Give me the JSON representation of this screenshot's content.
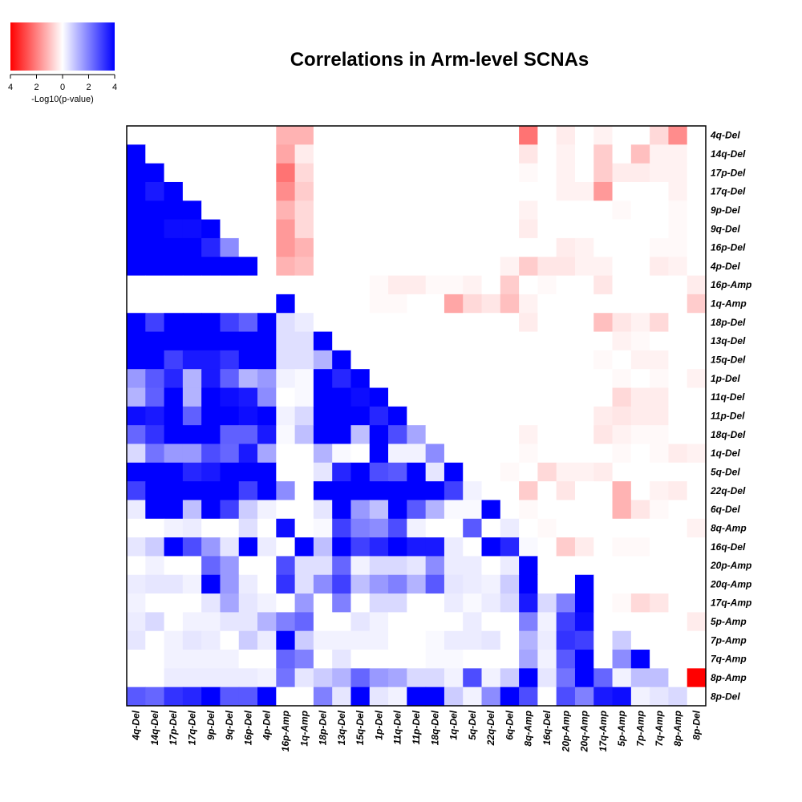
{
  "chart_data": {
    "type": "heatmap",
    "title": "Correlations in Arm-level SCNAs",
    "legend": {
      "label": "-Log10(p-value)",
      "tick_labels": [
        "4",
        "2",
        "0",
        "2",
        "4"
      ],
      "scale": [
        -4,
        4
      ],
      "colors": {
        "negative": "#ff0000",
        "zero": "#ffffff",
        "positive": "#0000ff"
      },
      "placement": "top-left"
    },
    "row_labels": [
      "4q-Del",
      "14q-Del",
      "17p-Del",
      "17q-Del",
      "9p-Del",
      "9q-Del",
      "16p-Del",
      "4p-Del",
      "16p-Amp",
      "1q-Amp",
      "18p-Del",
      "13q-Del",
      "15q-Del",
      "1p-Del",
      "11q-Del",
      "11p-Del",
      "18q-Del",
      "1q-Del",
      "5q-Del",
      "22q-Del",
      "6q-Del",
      "8q-Amp",
      "16q-Del",
      "20p-Amp",
      "20q-Amp",
      "17q-Amp",
      "5p-Amp",
      "7p-Amp",
      "7q-Amp",
      "8p-Amp",
      "8p-Del"
    ],
    "col_labels": [
      "4q-Del",
      "14q-Del",
      "17p-Del",
      "17q-Del",
      "9p-Del",
      "9q-Del",
      "16p-Del",
      "4p-Del",
      "16p-Amp",
      "1q-Amp",
      "18p-Del",
      "13q-Del",
      "15q-Del",
      "1p-Del",
      "11q-Del",
      "11p-Del",
      "18q-Del",
      "1q-Del",
      "5q-Del",
      "22q-Del",
      "6q-Del",
      "8q-Amp",
      "16q-Del",
      "20p-Amp",
      "20q-Amp",
      "17q-Amp",
      "5p-Amp",
      "7p-Amp",
      "7q-Amp",
      "8p-Amp",
      "8p-Del"
    ],
    "lower_triangle_meaning": "blue = positive association strength",
    "upper_triangle_meaning": "red = negative association strength",
    "values": [
      [
        0,
        0,
        0,
        0,
        0,
        0,
        0,
        0,
        -1.2,
        -1.2,
        0,
        0,
        0,
        0,
        0,
        0,
        0,
        0,
        0,
        0,
        0,
        -2.2,
        0,
        -0.3,
        0,
        -0.2,
        0,
        0,
        -0.6,
        -1.8,
        0
      ],
      [
        4,
        0,
        0,
        0,
        0,
        0,
        0,
        0,
        -1.4,
        -0.3,
        0,
        0,
        0,
        0,
        0,
        0,
        0,
        0,
        0,
        0,
        0,
        -0.4,
        0,
        -0.2,
        0,
        -0.8,
        0,
        -1,
        -0.2,
        -0.2,
        0
      ],
      [
        4,
        4,
        0,
        0,
        0,
        0,
        0,
        0,
        -2.2,
        -0.6,
        0,
        0,
        0,
        0,
        0,
        0,
        0,
        0,
        0,
        0,
        0,
        -0.1,
        0,
        -0.2,
        0,
        -0.8,
        -0.3,
        -0.3,
        -0.2,
        -0.2,
        0
      ],
      [
        4,
        3.6,
        4,
        0,
        0,
        0,
        0,
        0,
        -1.8,
        -0.8,
        0,
        0,
        0,
        0,
        0,
        0,
        0,
        0,
        0,
        0,
        0,
        0,
        0,
        -0.2,
        -0.2,
        -1.6,
        0,
        0,
        0,
        -0.2,
        0
      ],
      [
        4,
        4,
        4,
        4,
        0,
        0,
        0,
        0,
        -1.2,
        -0.6,
        0,
        0,
        0,
        0,
        0,
        0,
        0,
        0,
        0,
        0,
        0,
        -0.2,
        0,
        0,
        0,
        0,
        -0.1,
        0,
        0,
        -0.1,
        0
      ],
      [
        4,
        4,
        3.8,
        3.8,
        4,
        0,
        0,
        0,
        -1.6,
        -0.6,
        0,
        0,
        0,
        0,
        0,
        0,
        0,
        0,
        0,
        0,
        0,
        -0.3,
        0,
        0,
        0,
        0,
        0,
        0,
        0,
        -0.1,
        0
      ],
      [
        4,
        4,
        4,
        4,
        3.4,
        1.8,
        0,
        0,
        -1.6,
        -1.2,
        0,
        0,
        0,
        0,
        0,
        0,
        0,
        0,
        0,
        0,
        0,
        0,
        0,
        -0.3,
        -0.2,
        0,
        0,
        0,
        -0.1,
        -0.1,
        0
      ],
      [
        4,
        4,
        4,
        4,
        4,
        4,
        4,
        0,
        -1.2,
        -1,
        0,
        0,
        0,
        0,
        0,
        0,
        0,
        0,
        0,
        0,
        -0.2,
        -0.8,
        -0.4,
        -0.4,
        -0.2,
        -0.2,
        0,
        0,
        -0.3,
        -0.2,
        0
      ],
      [
        0,
        0,
        0,
        0,
        0,
        0,
        0,
        0,
        0,
        0,
        0,
        0,
        0,
        -0.1,
        -0.3,
        -0.3,
        -0.1,
        -0.1,
        -0.2,
        0,
        -0.8,
        0,
        -0.1,
        0,
        0,
        -0.4,
        0,
        0,
        0,
        0,
        -0.3
      ],
      [
        0,
        0,
        0,
        0,
        0,
        0,
        0,
        0,
        4,
        0,
        0,
        0,
        0,
        -0.1,
        -0.1,
        0,
        0,
        -1.4,
        -0.6,
        -0.4,
        -1,
        -0.2,
        0,
        0,
        0,
        0,
        0,
        0,
        0,
        0,
        -0.8
      ],
      [
        4,
        3,
        4,
        4,
        4,
        3,
        2.5,
        4,
        0.5,
        0.3,
        0,
        0,
        0,
        0,
        0,
        0,
        0,
        0,
        0,
        0,
        0,
        -0.3,
        0,
        0,
        0,
        -1,
        -0.4,
        -0.2,
        -0.6,
        0,
        0
      ],
      [
        4,
        4,
        4,
        4,
        4,
        4,
        4,
        4,
        0.5,
        0.5,
        4,
        0,
        0,
        0,
        0,
        0,
        0,
        0,
        0,
        0,
        0,
        0,
        0,
        0,
        0,
        0,
        -0.2,
        -0.1,
        0,
        0,
        0
      ],
      [
        4,
        4,
        3,
        3.6,
        3.6,
        3.2,
        4,
        4,
        0.5,
        0.5,
        1.2,
        4,
        0,
        0,
        0,
        0,
        0,
        0,
        0,
        0,
        0,
        0,
        0,
        0,
        0,
        -0.1,
        0,
        -0.2,
        -0.2,
        0,
        0
      ],
      [
        1.6,
        2.6,
        3.4,
        1.2,
        3.6,
        2.5,
        1.2,
        1.6,
        0.2,
        0.1,
        4,
        3.4,
        4,
        0,
        0,
        0,
        0,
        0,
        0,
        0,
        0,
        0,
        0,
        0,
        0,
        0,
        -0.1,
        0,
        -0.1,
        0,
        -0.2
      ],
      [
        1.2,
        2.5,
        4,
        1.2,
        4,
        3.8,
        3.6,
        1.8,
        0,
        0.1,
        4,
        4,
        3.8,
        4,
        0,
        0,
        0,
        0,
        0,
        0,
        0,
        0,
        0,
        0,
        0,
        0,
        -0.6,
        -0.3,
        -0.3,
        0,
        0
      ],
      [
        3.8,
        3.6,
        4,
        2.5,
        4,
        4,
        3.8,
        4,
        0.2,
        0.6,
        4,
        4,
        4,
        3.4,
        4,
        0,
        0,
        0,
        0,
        0,
        0,
        0,
        0,
        0,
        0,
        -0.3,
        -0.4,
        -0.3,
        -0.3,
        0,
        0
      ],
      [
        2.4,
        3.2,
        4,
        4,
        4,
        2.5,
        2.5,
        3.6,
        0.1,
        1,
        4,
        4,
        1,
        4,
        2.8,
        1.4,
        0,
        0,
        0,
        0,
        0,
        -0.2,
        0,
        0,
        0,
        -0.4,
        -0.2,
        -0.1,
        -0.1,
        0,
        0
      ],
      [
        0.6,
        2.2,
        1.6,
        1.6,
        2.8,
        2.4,
        3.6,
        1.4,
        0,
        0,
        1.2,
        0.1,
        0,
        4,
        0.2,
        0.2,
        1.8,
        0,
        0,
        0,
        0,
        -0.1,
        0,
        0,
        0,
        0,
        -0.1,
        0,
        -0.1,
        -0.3,
        -0.2
      ],
      [
        4,
        4,
        4,
        3.4,
        3.6,
        4,
        4,
        4,
        0,
        0,
        0.4,
        3.4,
        4,
        2.8,
        2.6,
        4,
        0.4,
        4,
        0,
        0,
        -0.1,
        0,
        -0.6,
        -0.2,
        -0.2,
        -0.3,
        0,
        0,
        0,
        0,
        0
      ],
      [
        3,
        4,
        4,
        4,
        4,
        4,
        3,
        4,
        1.8,
        0,
        4,
        4,
        4,
        4,
        4,
        4,
        4,
        3,
        0.2,
        0,
        0,
        -0.8,
        0,
        -0.4,
        0,
        0,
        -1.2,
        0,
        -0.2,
        -0.3,
        0
      ],
      [
        0.3,
        4,
        4,
        1,
        4,
        3,
        0.8,
        0.2,
        0,
        0,
        0.4,
        4,
        1.6,
        1,
        4,
        2.6,
        1.2,
        0.1,
        0.1,
        4,
        0,
        -0.1,
        0,
        0,
        0,
        0,
        -1.2,
        -0.4,
        -0.1,
        0,
        0
      ],
      [
        0,
        0,
        0.2,
        0.3,
        0,
        0,
        0.5,
        0,
        3.8,
        0,
        0.1,
        3,
        2,
        1.8,
        2.8,
        0.2,
        0,
        0,
        2.6,
        0,
        0.3,
        0,
        -0.1,
        0,
        0,
        0,
        0,
        0,
        0,
        0,
        -0.2
      ],
      [
        0.4,
        0.8,
        4,
        2.8,
        1.6,
        0.4,
        4,
        0.3,
        0,
        4,
        1,
        4,
        3,
        3.4,
        4,
        3.6,
        3.6,
        0.3,
        0,
        4,
        3.4,
        0.1,
        0,
        -0.8,
        -0.3,
        0,
        -0.1,
        -0.1,
        0,
        0,
        0
      ],
      [
        0,
        0.2,
        0,
        0,
        2.4,
        1.6,
        0,
        0,
        2.8,
        0.5,
        0.5,
        2.4,
        0.2,
        0.6,
        0.6,
        0.4,
        1.8,
        0.3,
        0.3,
        0,
        0.3,
        4,
        0,
        0,
        0,
        0,
        0,
        0,
        0,
        0,
        0
      ],
      [
        0.3,
        0.4,
        0.4,
        0.2,
        4,
        1.6,
        0.3,
        0,
        3.2,
        0.5,
        1.8,
        3,
        1,
        1.6,
        2,
        1.2,
        2.6,
        0.4,
        0.3,
        0.2,
        0.8,
        4,
        0,
        0,
        4,
        0,
        0,
        0,
        0,
        0,
        0
      ],
      [
        0.2,
        0,
        0,
        0,
        0.4,
        1.4,
        0.4,
        0.2,
        0,
        1.6,
        0,
        2,
        0,
        0.6,
        0.6,
        0,
        0,
        0.3,
        0.1,
        0.3,
        0.6,
        3.6,
        0.6,
        2,
        4,
        0,
        -0.1,
        -0.6,
        -0.4,
        0,
        0
      ],
      [
        0.3,
        0.6,
        0,
        0.2,
        0.2,
        0.4,
        0.4,
        1.2,
        2,
        2.4,
        0,
        0,
        0.4,
        0.2,
        0,
        0,
        0,
        0,
        0.3,
        0,
        0,
        2,
        0.2,
        3,
        3.8,
        0,
        0,
        0,
        0,
        0,
        -0.3
      ],
      [
        0.4,
        0,
        0.2,
        0.4,
        0.3,
        0,
        0.8,
        0.3,
        4,
        0.8,
        0.2,
        0.2,
        0.2,
        0.2,
        0,
        0,
        0.1,
        0.3,
        0.3,
        0.4,
        0,
        1.2,
        0.3,
        3.2,
        3,
        0,
        0.8,
        0,
        0,
        0,
        0
      ],
      [
        0,
        0,
        0.2,
        0.2,
        0.2,
        0.2,
        0,
        0,
        2.4,
        2,
        0,
        0.4,
        0,
        0,
        0,
        0,
        0.1,
        0.1,
        0,
        0,
        0,
        1.4,
        0.2,
        2.6,
        4,
        0,
        1.8,
        4,
        0,
        0,
        0
      ],
      [
        0,
        0,
        0.3,
        0.3,
        0.3,
        0.3,
        0.3,
        0.2,
        2.2,
        0.4,
        0.8,
        1.2,
        2.4,
        1.6,
        1.4,
        0.6,
        0.6,
        0.2,
        2.8,
        0.2,
        0.8,
        4,
        0.4,
        2.2,
        4,
        2.4,
        0.2,
        1,
        1,
        0,
        -4
      ],
      [
        2.6,
        2.4,
        3.2,
        3.4,
        4,
        2.6,
        2.6,
        4,
        0,
        0,
        2,
        0.4,
        4,
        0.4,
        0.2,
        4,
        4,
        0.8,
        0.2,
        1.8,
        4,
        2.8,
        0,
        2.8,
        2,
        3.6,
        3.8,
        0.2,
        0.4,
        0.6,
        0
      ]
    ]
  }
}
